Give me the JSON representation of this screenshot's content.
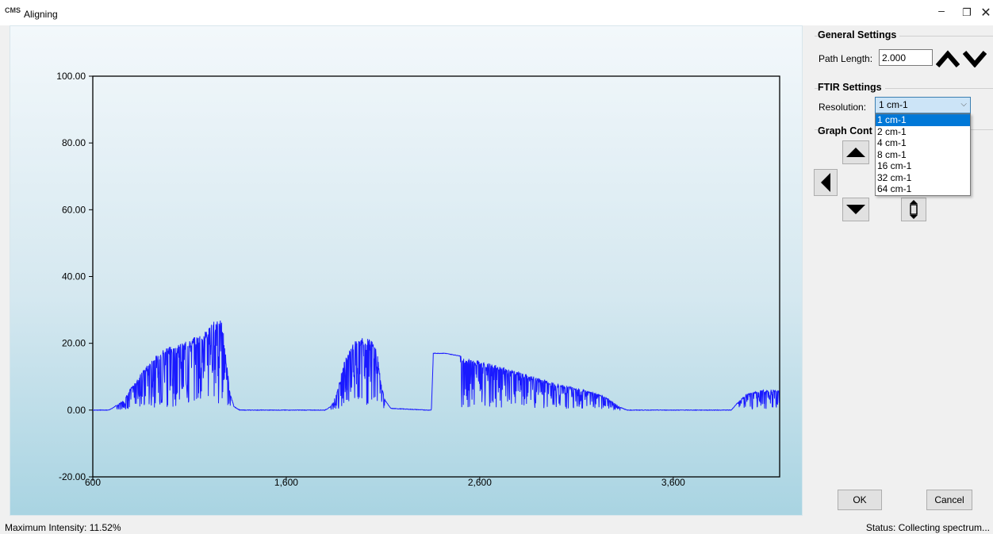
{
  "window": {
    "title": "Aligning",
    "icon_text": "CMS",
    "minimize_symbol": "–",
    "maximize_symbol": "❐",
    "close_symbol": "✕"
  },
  "general_settings": {
    "title": "General Settings",
    "path_length_label": "Path Length:",
    "path_length_value": "2.000"
  },
  "ftir_settings": {
    "title": "FTIR Settings",
    "resolution_label": "Resolution:",
    "resolution_value": "1 cm-1",
    "resolution_options": [
      "1 cm-1",
      "2 cm-1",
      "4 cm-1",
      "8 cm-1",
      "16 cm-1",
      "32 cm-1",
      "64 cm-1"
    ],
    "selected_index": 0
  },
  "graph_controls": {
    "title": "Graph Cont"
  },
  "buttons": {
    "ok": "OK",
    "cancel": "Cancel"
  },
  "status": {
    "max_intensity": "Maximum Intensity: 11.52%",
    "status_text": "Status: Collecting spectrum..."
  },
  "colors": {
    "trace": "#1a1aff",
    "selection": "#0078d7"
  },
  "chart_data": {
    "type": "line",
    "xlim": [
      600,
      4150
    ],
    "ylim": [
      -20,
      100
    ],
    "x_ticks": [
      600,
      1600,
      2600,
      3600
    ],
    "x_tick_labels": [
      "600",
      "1,600",
      "2,600",
      "3,600"
    ],
    "y_ticks": [
      -20,
      0,
      20,
      40,
      60,
      80,
      100
    ],
    "y_tick_labels": [
      "-20.00",
      "0.00",
      "20.00",
      "40.00",
      "60.00",
      "80.00",
      "100.00"
    ],
    "grid": false,
    "legend": "none",
    "series": [
      {
        "envelope": [
          [
            600,
            0
          ],
          [
            680,
            0
          ],
          [
            700,
            0.5
          ],
          [
            760,
            3
          ],
          [
            800,
            7
          ],
          [
            860,
            12
          ],
          [
            920,
            16
          ],
          [
            980,
            19
          ],
          [
            1040,
            19.5
          ],
          [
            1100,
            21
          ],
          [
            1160,
            23
          ],
          [
            1200,
            25
          ],
          [
            1250,
            28
          ],
          [
            1270,
            26
          ],
          [
            1290,
            15
          ],
          [
            1310,
            5
          ],
          [
            1330,
            1
          ],
          [
            1360,
            0
          ],
          [
            1800,
            0
          ],
          [
            1830,
            1
          ],
          [
            1860,
            5
          ],
          [
            1900,
            15
          ],
          [
            1940,
            20
          ],
          [
            1990,
            22
          ],
          [
            2040,
            21
          ],
          [
            2070,
            18
          ],
          [
            2090,
            8
          ],
          [
            2110,
            3
          ],
          [
            2140,
            0.5
          ],
          [
            2330,
            0
          ],
          [
            2350,
            0
          ],
          [
            2360,
            17
          ],
          [
            2420,
            17
          ],
          [
            2520,
            16
          ],
          [
            2650,
            14
          ],
          [
            2780,
            12
          ],
          [
            2880,
            10
          ],
          [
            3000,
            8
          ],
          [
            3150,
            6
          ],
          [
            3250,
            4
          ],
          [
            3320,
            1
          ],
          [
            3360,
            0
          ],
          [
            3900,
            0
          ],
          [
            3930,
            2
          ],
          [
            3980,
            5
          ],
          [
            4050,
            6
          ],
          [
            4150,
            6
          ]
        ],
        "absorption_regions": [
          [
            720,
            1320
          ],
          [
            1830,
            2110
          ],
          [
            2500,
            3340
          ],
          [
            3930,
            4150
          ]
        ]
      }
    ]
  }
}
